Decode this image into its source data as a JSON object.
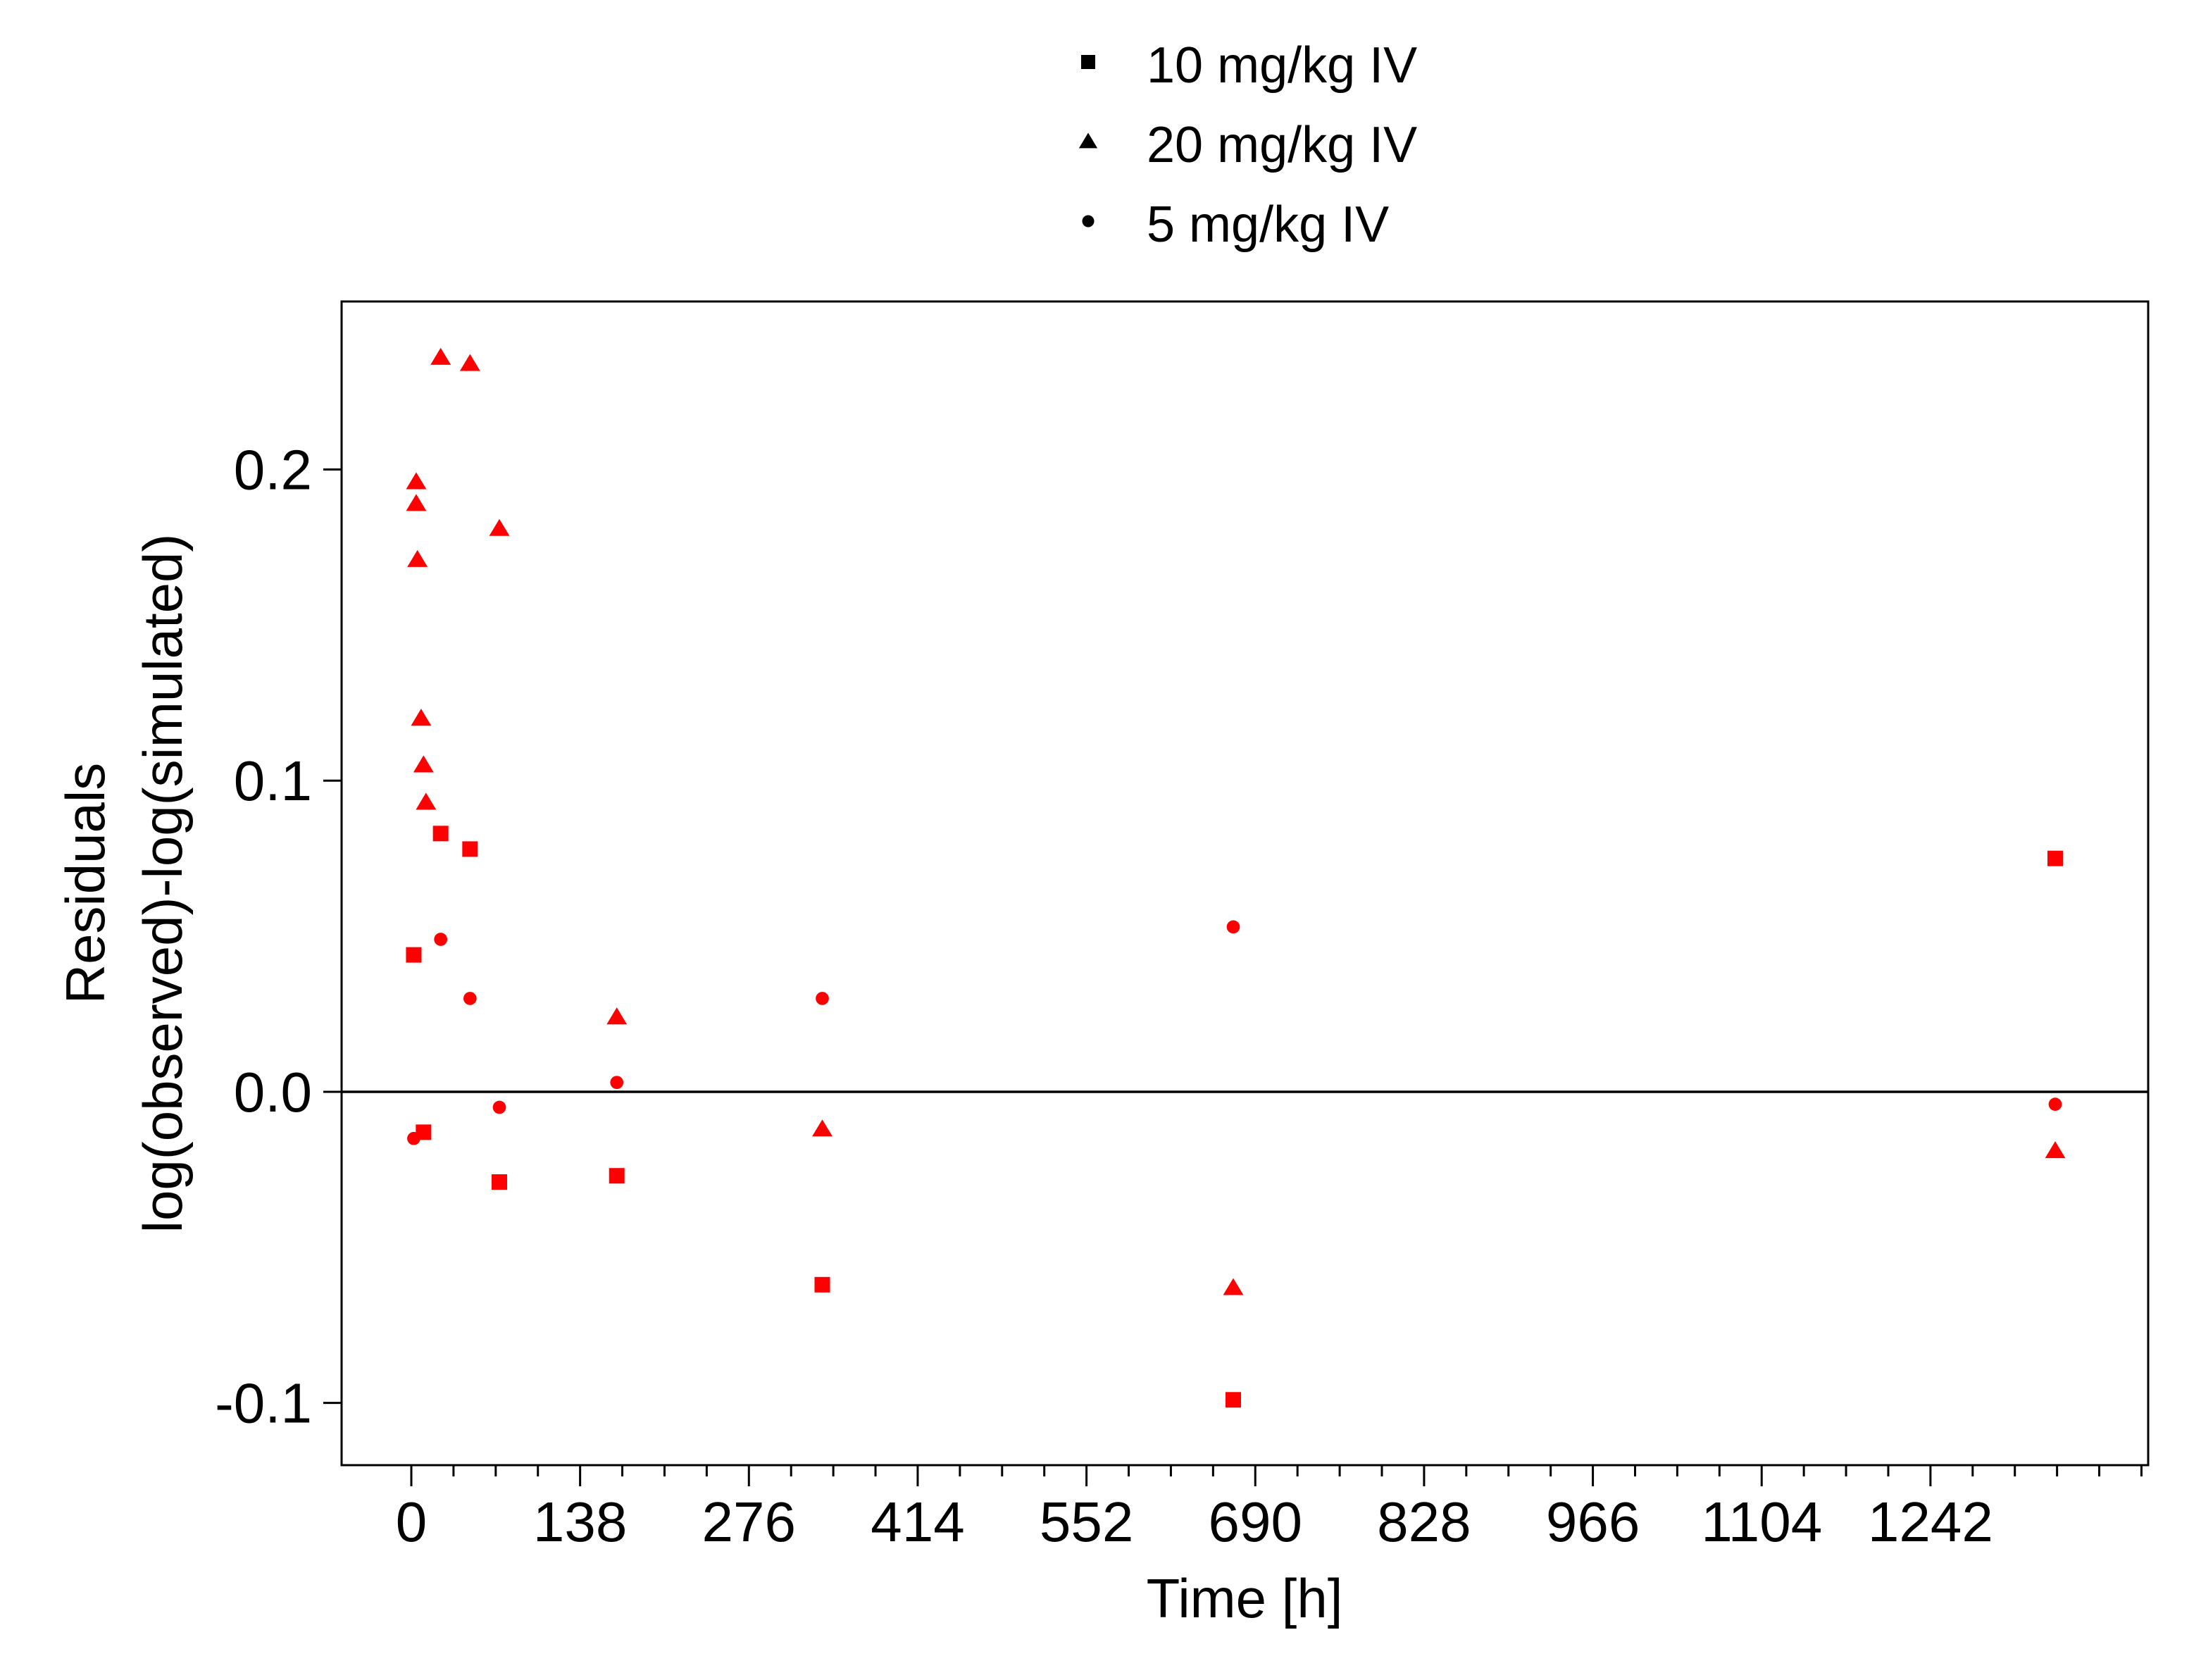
{
  "chart_data": {
    "type": "scatter",
    "title": "",
    "xlabel": "Time [h]",
    "ylabel_lines": [
      "Residuals",
      "log(observed)-log(simulated)"
    ],
    "xlim": [
      -57,
      1420
    ],
    "ylim": [
      -0.12,
      0.254
    ],
    "x_ticks": [
      0,
      138,
      276,
      414,
      552,
      690,
      828,
      966,
      1104,
      1242
    ],
    "x_tick_labels": [
      "0",
      "138",
      "276",
      "414",
      "552",
      "690",
      "828",
      "966",
      "1104",
      "1242"
    ],
    "x_minor_step": 34.5,
    "y_ticks": [
      -0.1,
      0.0,
      0.1,
      0.2
    ],
    "y_tick_labels": [
      "-0.1",
      "0.0",
      "0.1",
      "0.2"
    ],
    "reference_line_y": 0,
    "marker_color": "#ff0000",
    "legend_marker_color": "#000000",
    "legend_position": "top-center",
    "grid": false,
    "series": [
      {
        "name": "10 mg/kg IV",
        "marker": "square",
        "points": [
          {
            "x": 2,
            "y": 0.044
          },
          {
            "x": 10,
            "y": -0.013
          },
          {
            "x": 24,
            "y": 0.083
          },
          {
            "x": 48,
            "y": 0.078
          },
          {
            "x": 72,
            "y": -0.029
          },
          {
            "x": 168,
            "y": -0.027
          },
          {
            "x": 336,
            "y": -0.062
          },
          {
            "x": 672,
            "y": -0.099
          },
          {
            "x": 1344,
            "y": 0.075
          }
        ]
      },
      {
        "name": "20 mg/kg IV",
        "marker": "triangle",
        "points": [
          {
            "x": 4,
            "y": 0.196
          },
          {
            "x": 4,
            "y": 0.189
          },
          {
            "x": 5,
            "y": 0.171
          },
          {
            "x": 8,
            "y": 0.12
          },
          {
            "x": 10,
            "y": 0.105
          },
          {
            "x": 12,
            "y": 0.093
          },
          {
            "x": 24,
            "y": 0.236
          },
          {
            "x": 48,
            "y": 0.234
          },
          {
            "x": 72,
            "y": 0.181
          },
          {
            "x": 168,
            "y": 0.024
          },
          {
            "x": 336,
            "y": -0.012
          },
          {
            "x": 672,
            "y": -0.063
          },
          {
            "x": 1344,
            "y": -0.019
          }
        ]
      },
      {
        "name": "5 mg/kg IV",
        "marker": "circle",
        "points": [
          {
            "x": 2,
            "y": -0.015
          },
          {
            "x": 24,
            "y": 0.049
          },
          {
            "x": 48,
            "y": 0.03
          },
          {
            "x": 72,
            "y": -0.005
          },
          {
            "x": 168,
            "y": 0.003
          },
          {
            "x": 336,
            "y": 0.03
          },
          {
            "x": 672,
            "y": 0.053
          },
          {
            "x": 1344,
            "y": -0.004
          }
        ]
      }
    ]
  }
}
